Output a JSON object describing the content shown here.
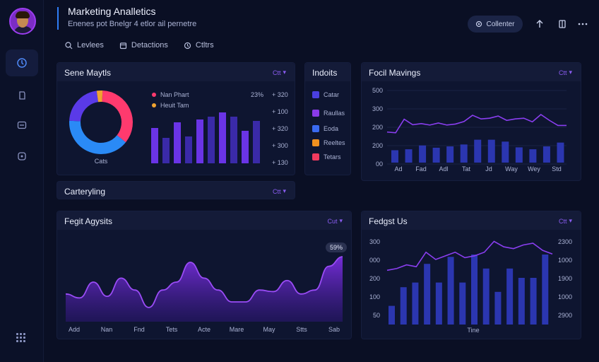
{
  "header": {
    "title": "Marketing Analletics",
    "subtitle": "Enenes pot Bnelgr 4 etlor ail pernetre",
    "collab_label": "Collenter"
  },
  "tabs": [
    {
      "label": "Levlees",
      "icon": "search-icon"
    },
    {
      "label": "Detactions",
      "icon": "calendar-icon"
    },
    {
      "label": "Ctltrs",
      "icon": "clock-icon"
    }
  ],
  "sidebar": {
    "items": [
      {
        "icon": "dashboard-icon",
        "active": true
      },
      {
        "icon": "document-icon",
        "active": false
      },
      {
        "icon": "inbox-icon",
        "active": false
      },
      {
        "icon": "chat-icon",
        "active": false
      }
    ]
  },
  "donut_card": {
    "title": "Sene Maytls",
    "dropdown": "Ctt",
    "donut_caption": "Cats",
    "legend": [
      {
        "label": "Nan Phart",
        "color": "#ff3a6e"
      },
      {
        "label": "Heuit Tam",
        "color": "#f0a330"
      }
    ],
    "percent_label": "23%",
    "axis_labels": [
      "+ 320",
      "+ 100",
      "+ 320",
      "+ 300",
      "+ 130"
    ]
  },
  "carrying_card": {
    "title": "Carteryling",
    "dropdown": "Ctt"
  },
  "insights_card": {
    "title": "Indoits",
    "items": [
      {
        "label": "Catar",
        "color": "#4a3fe0"
      },
      {
        "label": "Raullas",
        "color": "#8a3ae8"
      },
      {
        "label": "Eoda",
        "color": "#3a6af0"
      },
      {
        "label": "Reeltes",
        "color": "#f0901f"
      },
      {
        "label": "Tetars",
        "color": "#f03a5e"
      }
    ]
  },
  "focil_card": {
    "title": "Focil Mavings",
    "dropdown": "Ctt",
    "y_labels": [
      "500",
      "300",
      "200",
      "200",
      "00"
    ],
    "x_labels": [
      "Ad",
      "Fad",
      "Adl",
      "Tat",
      "Jd",
      "Way",
      "Wey",
      "Std"
    ]
  },
  "fegit_card": {
    "title": "Fegit Agysits",
    "dropdown": "Cut",
    "badge": "59%",
    "x_labels": [
      "Add",
      "Nan",
      "Fnd",
      "Tets",
      "Acte",
      "Mare",
      "May",
      "Stts",
      "Sab"
    ]
  },
  "fedgst_card": {
    "title": "Fedgst Us",
    "dropdown": "Ctt",
    "left_labels": [
      "300",
      "000",
      "200",
      "100",
      "50"
    ],
    "right_labels": [
      "2300",
      "1000",
      "1900",
      "1000",
      "2900"
    ],
    "x_caption": "Tine"
  },
  "chart_data": [
    {
      "type": "bar",
      "title": "Sene Maytls",
      "donut": {
        "slices": [
          {
            "label": "Nan Phart",
            "value": 35,
            "color": "#ff3a6e"
          },
          {
            "label": "Blue",
            "value": 40,
            "color": "#2a8af6"
          },
          {
            "label": "Violet",
            "value": 22,
            "color": "#5a3ae8"
          },
          {
            "label": "Heuit Tam",
            "value": 3,
            "color": "#f0a330"
          }
        ]
      },
      "values": [
        50,
        36,
        58,
        38,
        62,
        66,
        72,
        66,
        46,
        60
      ]
    },
    {
      "type": "line",
      "title": "Focil Mavings",
      "line": [
        210,
        205,
        298,
        260,
        268,
        258,
        272,
        258,
        265,
        282,
        325,
        300,
        305,
        320,
        290,
        300,
        305,
        280,
        330,
        290,
        255,
        255
      ],
      "bars": [
        65,
        70,
        90,
        78,
        85,
        95,
        120,
        120,
        110,
        80,
        70,
        85,
        105
      ],
      "ylim": [
        0,
        500
      ]
    },
    {
      "type": "area",
      "title": "Fegit Agysits",
      "values": [
        35,
        30,
        50,
        32,
        55,
        40,
        18,
        40,
        50,
        75,
        55,
        40,
        25,
        25,
        40,
        38,
        52,
        35,
        40,
        70,
        82
      ],
      "ylim": [
        0,
        100
      ]
    },
    {
      "type": "line",
      "title": "Fedgst Us",
      "line": [
        150,
        155,
        165,
        160,
        200,
        180,
        190,
        200,
        185,
        190,
        200,
        230,
        215,
        210,
        220,
        225,
        205,
        195
      ],
      "bars": [
        40,
        80,
        90,
        130,
        90,
        145,
        90,
        150,
        120,
        70,
        120,
        100,
        100,
        150
      ],
      "ylim": [
        0,
        300
      ]
    }
  ]
}
